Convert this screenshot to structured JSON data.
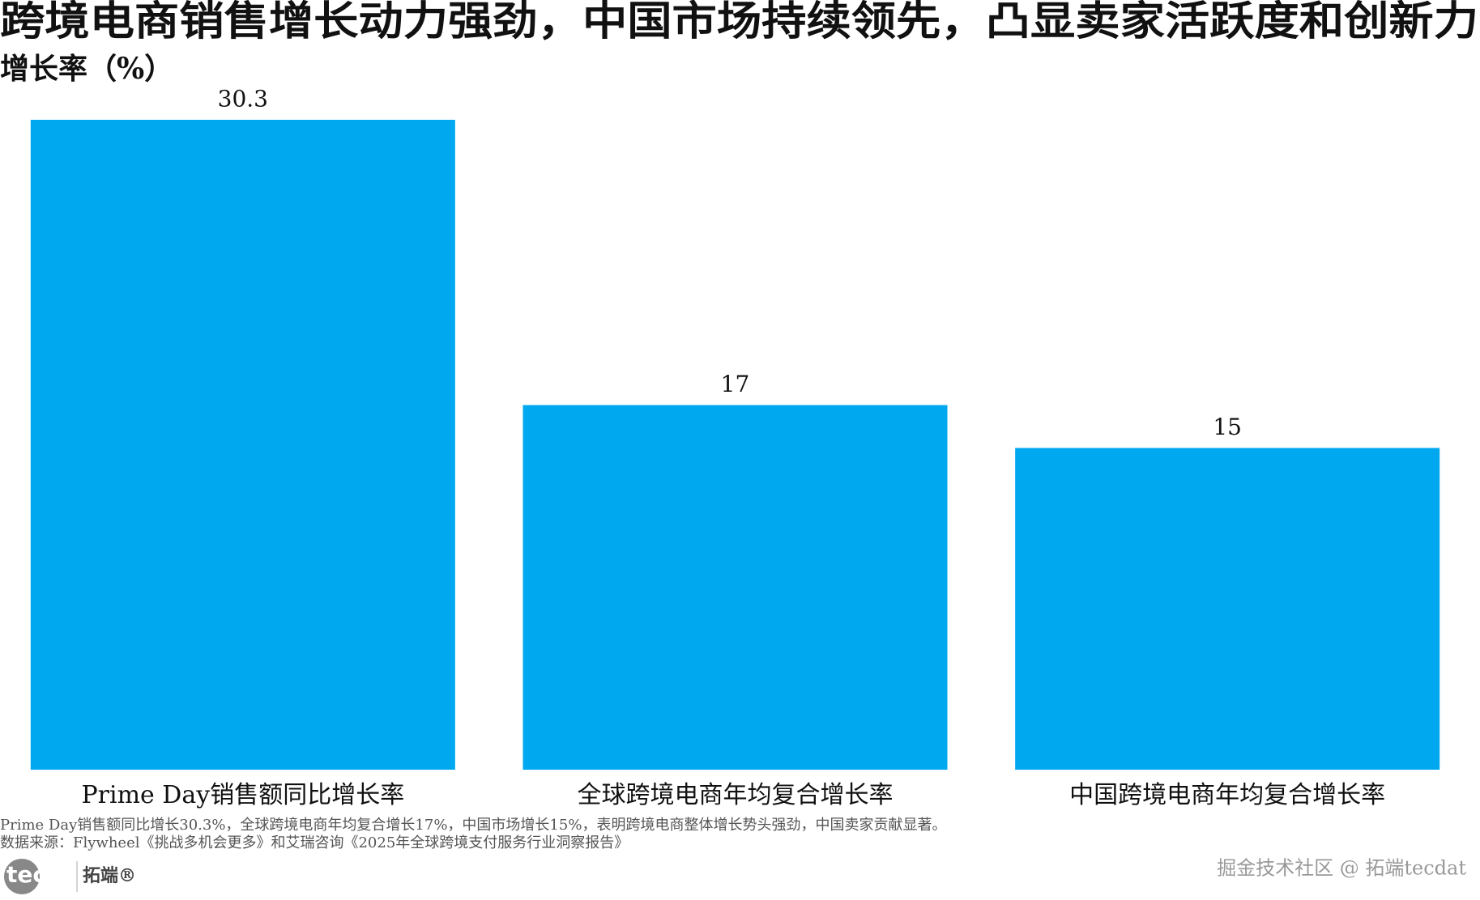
{
  "chart_data": {
    "type": "bar",
    "title": "跨境电商销售增长动力强劲，中国市场持续领先，凸显卖家活跃度和创新力",
    "subtitle": "增长率（%）",
    "categories": [
      "Prime Day销售额同比增长率",
      "全球跨境电商年均复合增长率",
      "中国跨境电商年均复合增长率"
    ],
    "values": [
      30.3,
      17,
      15
    ],
    "color": "#00a8f0",
    "note": "Prime Day销售额同比增长30.3%，全球跨境电商年均复合增长17%，中国市场增长15%，表明跨境电商整体增长势头强劲，中国卖家贡献显著。",
    "source": "数据来源：Flywheel《挑战多机会更多》和艾瑞咨询《2025年全球跨境支付服务行业洞察报告》"
  },
  "branding": {
    "logo": "tecdat",
    "logo_cn": "拓端®",
    "watermark": "掘金技术社区 @ 拓端tecdat"
  }
}
